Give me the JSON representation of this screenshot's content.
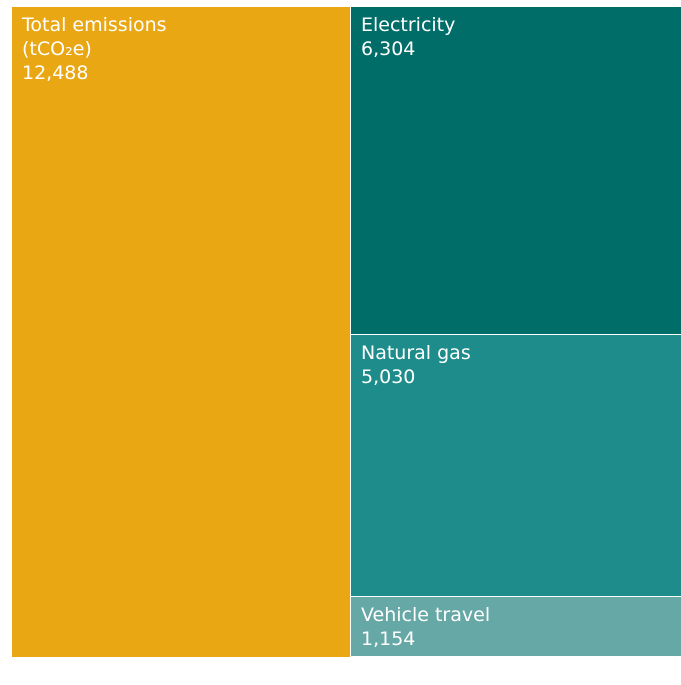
{
  "chart_data": {
    "type": "treemap",
    "total_label": "Total emissions",
    "total_unit": "(tCO₂e)",
    "total": 12488,
    "total_value_label": "12,488",
    "total_color": "#e8a713",
    "categories": [
      "Electricity",
      "Natural gas",
      "Vehicle travel"
    ],
    "values": [
      6304,
      5030,
      1154
    ],
    "value_labels": [
      "6,304",
      "5,030",
      "1,154"
    ],
    "colors": [
      "#006d68",
      "#1d8c8a",
      "#66a8a6"
    ]
  }
}
